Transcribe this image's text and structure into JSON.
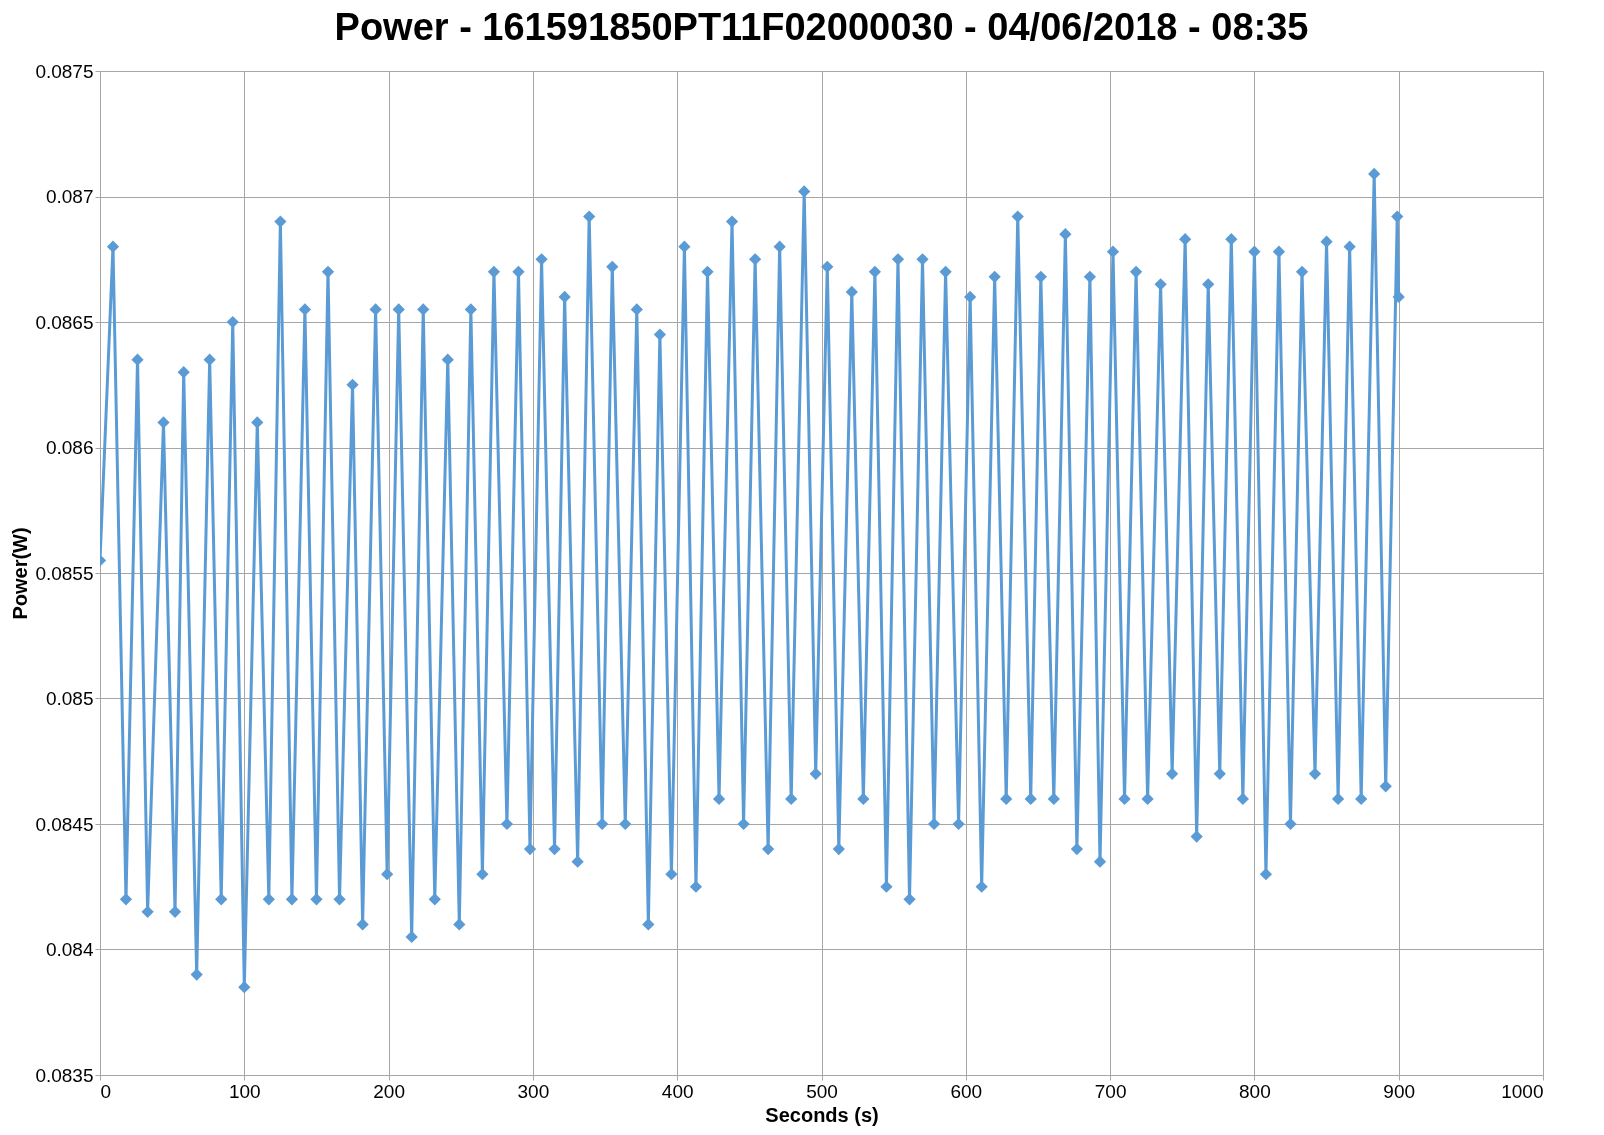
{
  "chart_data": {
    "type": "line",
    "title": "Power - 161591850PT11F02000030 - 04/06/2018 - 08:35",
    "xlabel": "Seconds (s)",
    "ylabel": "Power(W)",
    "x": [
      0,
      9,
      18,
      26,
      33,
      44,
      52,
      58,
      67,
      76,
      84,
      92,
      100,
      109,
      117,
      125,
      133,
      142,
      150,
      158,
      166,
      175,
      182,
      191,
      199,
      207,
      216,
      224,
      232,
      241,
      249,
      257,
      265,
      273,
      282,
      290,
      298,
      306,
      315,
      322,
      331,
      339,
      348,
      355,
      364,
      372,
      380,
      388,
      396,
      405,
      413,
      421,
      429,
      438,
      446,
      454,
      463,
      471,
      479,
      488,
      496,
      504,
      512,
      521,
      529,
      537,
      545,
      553,
      561,
      570,
      578,
      586,
      595,
      603,
      611,
      620,
      628,
      636,
      645,
      652,
      661,
      669,
      677,
      686,
      693,
      702,
      710,
      718,
      726,
      735,
      743,
      752,
      760,
      768,
      776,
      784,
      792,
      800,
      808,
      817,
      825,
      833,
      842,
      850,
      858,
      866,
      874,
      883,
      891,
      899,
      900
    ],
    "series": [
      {
        "color": "#5b9bd5",
        "values": [
          0.08555,
          0.0868,
          0.0842,
          0.08635,
          0.08415,
          0.0861,
          0.08415,
          0.0863,
          0.0839,
          0.08635,
          0.0842,
          0.0865,
          0.08385,
          0.0861,
          0.0842,
          0.0869,
          0.0842,
          0.08655,
          0.0842,
          0.0867,
          0.0842,
          0.08625,
          0.0841,
          0.08655,
          0.0843,
          0.08655,
          0.08405,
          0.08655,
          0.0842,
          0.08635,
          0.0841,
          0.08655,
          0.0843,
          0.0867,
          0.0845,
          0.0867,
          0.0844,
          0.08675,
          0.0844,
          0.0866,
          0.08435,
          0.08692,
          0.0845,
          0.08672,
          0.0845,
          0.08655,
          0.0841,
          0.08645,
          0.0843,
          0.0868,
          0.08425,
          0.0867,
          0.0846,
          0.0869,
          0.0845,
          0.08675,
          0.0844,
          0.0868,
          0.0846,
          0.08702,
          0.0847,
          0.08672,
          0.0844,
          0.08662,
          0.0846,
          0.0867,
          0.08425,
          0.08675,
          0.0842,
          0.08675,
          0.0845,
          0.0867,
          0.0845,
          0.0866,
          0.08425,
          0.08668,
          0.0846,
          0.08692,
          0.0846,
          0.08668,
          0.0846,
          0.08685,
          0.0844,
          0.08668,
          0.08435,
          0.08678,
          0.0846,
          0.0867,
          0.0846,
          0.08665,
          0.0847,
          0.08683,
          0.08445,
          0.08665,
          0.0847,
          0.08683,
          0.0846,
          0.08678,
          0.0843,
          0.08678,
          0.0845,
          0.0867,
          0.0847,
          0.08682,
          0.0846,
          0.0868,
          0.0846,
          0.08709,
          0.08465,
          0.08692,
          0.0866
        ]
      }
    ],
    "xlim": [
      0,
      1000
    ],
    "xticks": [
      0,
      100,
      200,
      300,
      400,
      500,
      600,
      700,
      800,
      900,
      1000
    ],
    "ylim": [
      0.0835,
      0.0875
    ],
    "yticks": [
      0.0835,
      0.084,
      0.0845,
      0.085,
      0.0855,
      0.086,
      0.0865,
      0.087,
      0.0875
    ],
    "grid": true,
    "marker": "diamond",
    "line_style": "solid"
  }
}
